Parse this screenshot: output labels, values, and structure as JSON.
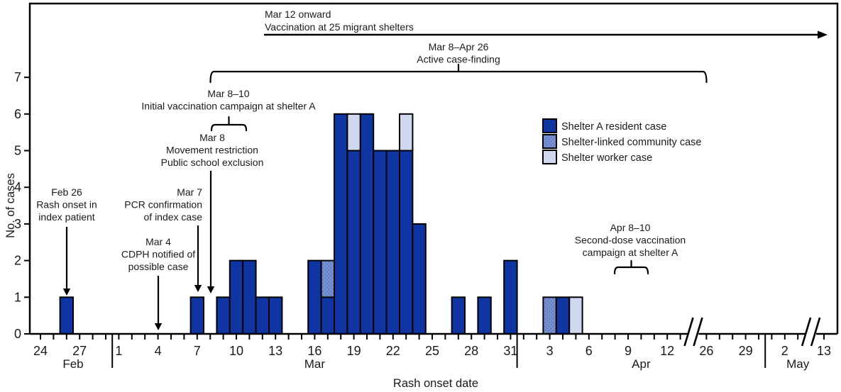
{
  "figure": {
    "y_axis": {
      "label": "No. of cases",
      "ticks": [
        "0",
        "1",
        "2",
        "3",
        "4",
        "5",
        "6",
        "7"
      ],
      "max": 7
    },
    "x_axis": {
      "label": "Rash onset date"
    },
    "months": [
      {
        "name": "Feb",
        "days_start": 24,
        "days_end": 29,
        "labeled_days": [
          24,
          27
        ]
      },
      {
        "name": "Mar",
        "days_start": 1,
        "days_end": 31,
        "labeled_days": [
          1,
          4,
          7,
          10,
          13,
          16,
          19,
          22,
          25,
          28,
          31
        ]
      },
      {
        "name": "Apr",
        "days_start": 1,
        "days_end": 13,
        "labeled_days": [
          3,
          6,
          9,
          12
        ]
      },
      {
        "name": "Apr",
        "days_start": 26,
        "days_end": 30,
        "labeled_days": [
          26,
          29
        ],
        "break_before": true
      },
      {
        "name": "May",
        "days_start": 1,
        "days_end": 3,
        "labeled_days": [
          2
        ]
      },
      {
        "name": "May",
        "days_start": 13,
        "days_end": 13,
        "labeled_days": [
          13
        ],
        "break_before": true
      }
    ],
    "legend": {
      "items": [
        {
          "key": "resident",
          "label": "Shelter A resident case",
          "color": "#0F35A2",
          "pattern": "solid"
        },
        {
          "key": "community",
          "label": "Shelter-linked community case",
          "color": "#7992CF",
          "dot_color": "#5476C2",
          "pattern": "dotted"
        },
        {
          "key": "worker",
          "label": "Shelter worker case",
          "color": "#CFD8EF",
          "pattern": "solid"
        }
      ]
    },
    "colors": {
      "outline": "#000000",
      "axis": "#000000",
      "text": "#1a1a1a"
    }
  },
  "chart_data": {
    "type": "bar",
    "stacked": true,
    "xlabel": "Rash onset date",
    "ylabel": "No. of cases",
    "ylim": [
      0,
      7
    ],
    "x_range": "Feb 24 – May 13 (axis breaks Apr 14–25 and May 4–12)",
    "series_names": [
      "Shelter A resident case",
      "Shelter-linked community case",
      "Shelter worker case"
    ],
    "bars": [
      {
        "month": "Feb",
        "day": 26,
        "resident": 1,
        "community": 0,
        "worker": 0
      },
      {
        "month": "Mar",
        "day": 7,
        "resident": 1,
        "community": 0,
        "worker": 0
      },
      {
        "month": "Mar",
        "day": 9,
        "resident": 1,
        "community": 0,
        "worker": 0
      },
      {
        "month": "Mar",
        "day": 10,
        "resident": 2,
        "community": 0,
        "worker": 0
      },
      {
        "month": "Mar",
        "day": 11,
        "resident": 2,
        "community": 0,
        "worker": 0
      },
      {
        "month": "Mar",
        "day": 12,
        "resident": 1,
        "community": 0,
        "worker": 0
      },
      {
        "month": "Mar",
        "day": 13,
        "resident": 1,
        "community": 0,
        "worker": 0
      },
      {
        "month": "Mar",
        "day": 16,
        "resident": 2,
        "community": 0,
        "worker": 0
      },
      {
        "month": "Mar",
        "day": 17,
        "resident": 1,
        "community": 1,
        "worker": 0
      },
      {
        "month": "Mar",
        "day": 18,
        "resident": 6,
        "community": 0,
        "worker": 0
      },
      {
        "month": "Mar",
        "day": 19,
        "resident": 5,
        "community": 0,
        "worker": 1
      },
      {
        "month": "Mar",
        "day": 20,
        "resident": 6,
        "community": 0,
        "worker": 0
      },
      {
        "month": "Mar",
        "day": 21,
        "resident": 5,
        "community": 0,
        "worker": 0
      },
      {
        "month": "Mar",
        "day": 22,
        "resident": 5,
        "community": 0,
        "worker": 0
      },
      {
        "month": "Mar",
        "day": 23,
        "resident": 5,
        "community": 0,
        "worker": 1
      },
      {
        "month": "Mar",
        "day": 24,
        "resident": 3,
        "community": 0,
        "worker": 0
      },
      {
        "month": "Mar",
        "day": 27,
        "resident": 1,
        "community": 0,
        "worker": 0
      },
      {
        "month": "Mar",
        "day": 29,
        "resident": 1,
        "community": 0,
        "worker": 0
      },
      {
        "month": "Mar",
        "day": 31,
        "resident": 2,
        "community": 0,
        "worker": 0
      },
      {
        "month": "Apr",
        "day": 3,
        "resident": 0,
        "community": 1,
        "worker": 0
      },
      {
        "month": "Apr",
        "day": 4,
        "resident": 1,
        "community": 0,
        "worker": 0
      },
      {
        "month": "Apr",
        "day": 5,
        "resident": 0,
        "community": 0,
        "worker": 1
      }
    ]
  },
  "annotations": [
    {
      "id": "rash-onset-index",
      "marker": "down-arrow",
      "lines": [
        "Feb 26",
        "Rash onset in",
        "index patient"
      ]
    },
    {
      "id": "cdph-notified",
      "marker": "down-arrow",
      "lines": [
        "Mar 4",
        "CDPH notified of",
        "possible case"
      ]
    },
    {
      "id": "pcr-confirmation",
      "marker": "down-arrow",
      "lines": [
        "Mar 7",
        "PCR confirmation",
        "of index case"
      ]
    },
    {
      "id": "movement-restriction",
      "marker": "down-arrow",
      "lines": [
        "Mar 8",
        "Movement restriction",
        "Public school exclusion"
      ]
    },
    {
      "id": "initial-vaccination-campaign",
      "marker": "brace",
      "lines": [
        "Mar 8–10",
        "Initial vaccination campaign at shelter A"
      ]
    },
    {
      "id": "active-case-finding",
      "marker": "bracket",
      "lines": [
        "Mar 8–Apr 26",
        "Active case-finding"
      ]
    },
    {
      "id": "vaccination-migrant-shelters",
      "marker": "timeline-arrow",
      "lines": [
        "Mar 12 onward",
        "Vaccination at 25 migrant shelters"
      ]
    },
    {
      "id": "second-dose-vaccination",
      "marker": "brace",
      "lines": [
        "Apr 8–10",
        "Second-dose vaccination",
        "campaign at shelter A"
      ]
    }
  ]
}
